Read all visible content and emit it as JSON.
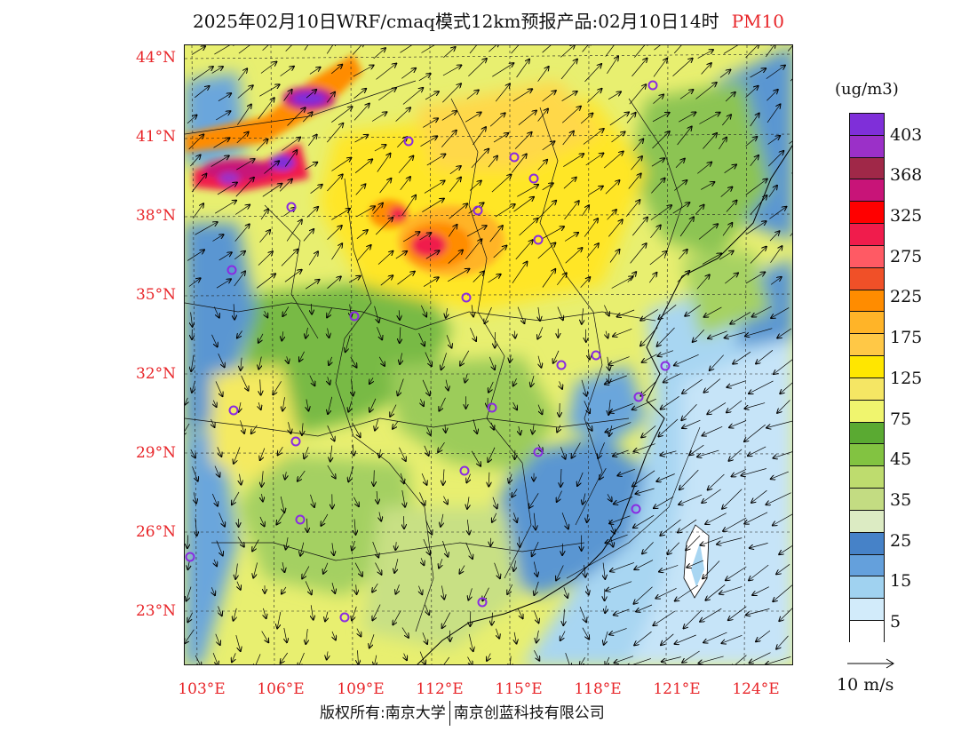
{
  "title": {
    "main": "2025年02月10日WRF/cmaq模式12km预报产品:02月10日14时",
    "product": "PM10"
  },
  "map": {
    "lat_labels": [
      "44°N",
      "41°N",
      "38°N",
      "35°N",
      "32°N",
      "29°N",
      "26°N",
      "23°N"
    ],
    "lon_labels": [
      "103°E",
      "106°E",
      "109°E",
      "112°E",
      "115°E",
      "118°E",
      "121°E",
      "124°E"
    ]
  },
  "legend": {
    "unit": "(ug/m3)",
    "colors": [
      "#7f2fd9",
      "#9b30c8",
      "#a02848",
      "#c81478",
      "#ff0000",
      "#f01c4c",
      "#ff5a64",
      "#f05028",
      "#ff8c00",
      "#ffb428",
      "#ffc846",
      "#ffe600",
      "#f5e664",
      "#f0f56e",
      "#5aaa32",
      "#82c341",
      "#bedc6e",
      "#c3dc82",
      "#dcebc3",
      "#4682c8",
      "#64a0dc",
      "#a0d2f0",
      "#d2ebfa",
      "#ffffff"
    ],
    "tick_labels": [
      "403",
      "368",
      "325",
      "275",
      "225",
      "175",
      "125",
      "75",
      "45",
      "35",
      "25",
      "15",
      "5"
    ]
  },
  "wind": {
    "reference_label": "10 m/s"
  },
  "footer": {
    "left": "版权所有:南京大学",
    "right": "南京创蓝科技有限公司"
  }
}
